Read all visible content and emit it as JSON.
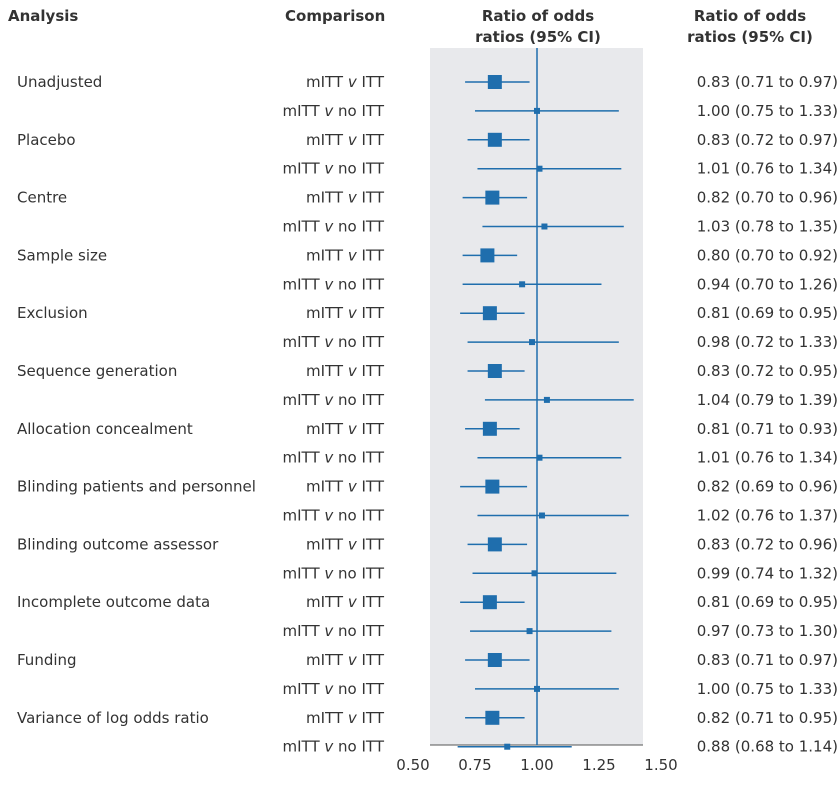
{
  "headers": {
    "analysis": "Analysis",
    "comparison": "Comparison",
    "plot_line1": "Ratio of odds",
    "plot_line2": "ratios (95% CI)",
    "ci_line1": "Ratio of odds",
    "ci_line2": "ratios (95% CI)"
  },
  "colors": {
    "marker": "#1f6ead",
    "panel": "#e8e9ec",
    "text": "#333333"
  },
  "chart_data": {
    "type": "forest",
    "xlim": [
      0.5,
      1.5
    ],
    "ticks": [
      "0.50",
      "0.75",
      "1.00",
      "1.25",
      "1.50"
    ],
    "tick_values": [
      0.5,
      0.75,
      1.0,
      1.25,
      1.5
    ],
    "reference_line": 1.0,
    "rows": [
      {
        "analysis": "Unadjusted",
        "comparison": "mITT v ITT",
        "est": 0.83,
        "lo": 0.71,
        "hi": 0.97,
        "ci_text": "0.83 (0.71 to 0.97)"
      },
      {
        "analysis": "",
        "comparison": "mITT v no ITT",
        "est": 1.0,
        "lo": 0.75,
        "hi": 1.33,
        "ci_text": "1.00 (0.75 to 1.33)"
      },
      {
        "analysis": "Placebo",
        "comparison": "mITT v ITT",
        "est": 0.83,
        "lo": 0.72,
        "hi": 0.97,
        "ci_text": "0.83 (0.72 to 0.97)"
      },
      {
        "analysis": "",
        "comparison": "mITT v no ITT",
        "est": 1.01,
        "lo": 0.76,
        "hi": 1.34,
        "ci_text": "1.01 (0.76 to 1.34)"
      },
      {
        "analysis": "Centre",
        "comparison": "mITT v ITT",
        "est": 0.82,
        "lo": 0.7,
        "hi": 0.96,
        "ci_text": "0.82 (0.70 to 0.96)"
      },
      {
        "analysis": "",
        "comparison": "mITT v no ITT",
        "est": 1.03,
        "lo": 0.78,
        "hi": 1.35,
        "ci_text": "1.03 (0.78 to 1.35)"
      },
      {
        "analysis": "Sample size",
        "comparison": "mITT v ITT",
        "est": 0.8,
        "lo": 0.7,
        "hi": 0.92,
        "ci_text": "0.80 (0.70 to 0.92)"
      },
      {
        "analysis": "",
        "comparison": "mITT v no ITT",
        "est": 0.94,
        "lo": 0.7,
        "hi": 1.26,
        "ci_text": "0.94 (0.70 to 1.26)"
      },
      {
        "analysis": "Exclusion",
        "comparison": "mITT v ITT",
        "est": 0.81,
        "lo": 0.69,
        "hi": 0.95,
        "ci_text": "0.81 (0.69 to 0.95)"
      },
      {
        "analysis": "",
        "comparison": "mITT v no ITT",
        "est": 0.98,
        "lo": 0.72,
        "hi": 1.33,
        "ci_text": "0.98 (0.72 to 1.33)"
      },
      {
        "analysis": "Sequence generation",
        "comparison": "mITT v ITT",
        "est": 0.83,
        "lo": 0.72,
        "hi": 0.95,
        "ci_text": "0.83 (0.72 to 0.95)"
      },
      {
        "analysis": "",
        "comparison": "mITT v no ITT",
        "est": 1.04,
        "lo": 0.79,
        "hi": 1.39,
        "ci_text": "1.04 (0.79 to 1.39)"
      },
      {
        "analysis": "Allocation concealment",
        "comparison": "mITT v ITT",
        "est": 0.81,
        "lo": 0.71,
        "hi": 0.93,
        "ci_text": "0.81 (0.71 to 0.93)"
      },
      {
        "analysis": "",
        "comparison": "mITT v no ITT",
        "est": 1.01,
        "lo": 0.76,
        "hi": 1.34,
        "ci_text": "1.01 (0.76 to 1.34)"
      },
      {
        "analysis": "Blinding patients and personnel",
        "comparison": "mITT v ITT",
        "est": 0.82,
        "lo": 0.69,
        "hi": 0.96,
        "ci_text": "0.82 (0.69 to 0.96)"
      },
      {
        "analysis": "",
        "comparison": "mITT v no ITT",
        "est": 1.02,
        "lo": 0.76,
        "hi": 1.37,
        "ci_text": "1.02 (0.76 to 1.37)"
      },
      {
        "analysis": "Blinding outcome assessor",
        "comparison": "mITT v ITT",
        "est": 0.83,
        "lo": 0.72,
        "hi": 0.96,
        "ci_text": "0.83 (0.72 to 0.96)"
      },
      {
        "analysis": "",
        "comparison": "mITT v no ITT",
        "est": 0.99,
        "lo": 0.74,
        "hi": 1.32,
        "ci_text": "0.99 (0.74 to 1.32)"
      },
      {
        "analysis": "Incomplete outcome data",
        "comparison": "mITT v ITT",
        "est": 0.81,
        "lo": 0.69,
        "hi": 0.95,
        "ci_text": "0.81 (0.69 to 0.95)"
      },
      {
        "analysis": "",
        "comparison": "mITT v no ITT",
        "est": 0.97,
        "lo": 0.73,
        "hi": 1.3,
        "ci_text": "0.97 (0.73 to 1.30)"
      },
      {
        "analysis": "Funding",
        "comparison": "mITT v ITT",
        "est": 0.83,
        "lo": 0.71,
        "hi": 0.97,
        "ci_text": "0.83 (0.71 to 0.97)"
      },
      {
        "analysis": "",
        "comparison": "mITT v no ITT",
        "est": 1.0,
        "lo": 0.75,
        "hi": 1.33,
        "ci_text": "1.00 (0.75 to 1.33)"
      },
      {
        "analysis": "Variance of log odds ratio",
        "comparison": "mITT v ITT",
        "est": 0.82,
        "lo": 0.71,
        "hi": 0.95,
        "ci_text": "0.82 (0.71 to 0.95)"
      },
      {
        "analysis": "",
        "comparison": "mITT v no ITT",
        "est": 0.88,
        "lo": 0.68,
        "hi": 1.14,
        "ci_text": "0.88 (0.68 to 1.14)"
      }
    ]
  }
}
